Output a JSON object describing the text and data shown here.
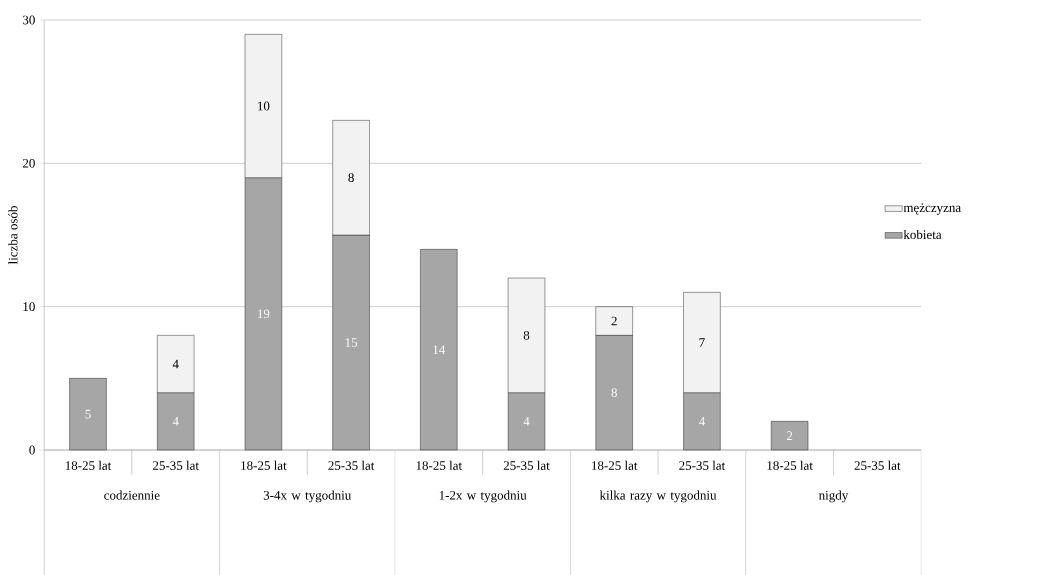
{
  "chart_data": {
    "type": "bar",
    "stacked": true,
    "ylabel": "liczba osób",
    "categories": [
      "18-25 lat",
      "25-35 lat",
      "18-25 lat",
      "25-35 lat",
      "18-25 lat",
      "25-35 lat",
      "18-25 lat",
      "25-35 lat",
      "18-25 lat",
      "25-35 lat"
    ],
    "series": [
      {
        "name": "kobieta",
        "color": "#a6a6a6",
        "values": [
          5,
          4,
          19,
          15,
          14,
          4,
          8,
          4,
          2,
          null
        ]
      },
      {
        "name": "mężczyzna",
        "color": "#f2f2f2",
        "values": [
          null,
          4,
          10,
          8,
          null,
          8,
          2,
          7,
          null,
          null
        ]
      }
    ],
    "annotations": [
      "codziennie",
      "3-4x w tygodniu",
      "1-2x w tygodniu",
      "kilka razy w tygodniu",
      "nigdy"
    ],
    "ylim": [
      0,
      30
    ],
    "yticks": [
      0,
      10,
      20,
      30
    ],
    "grid": "y",
    "legend": "right",
    "data_labels": true
  }
}
